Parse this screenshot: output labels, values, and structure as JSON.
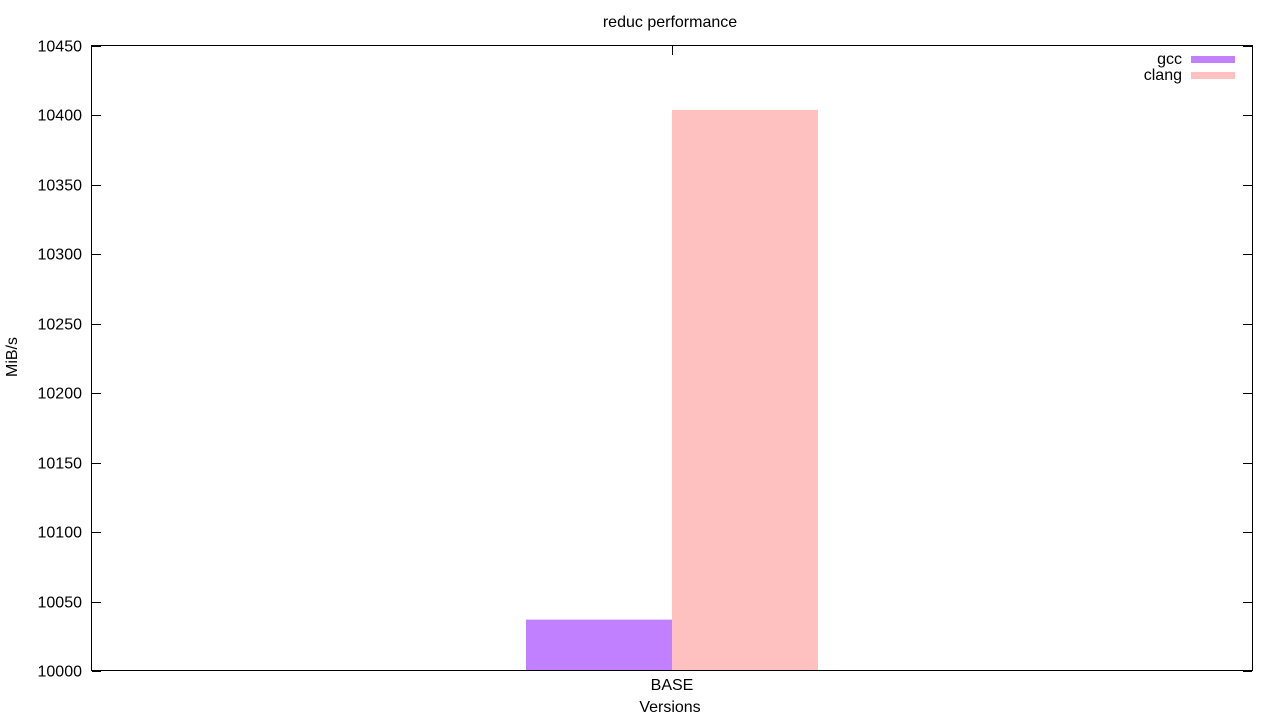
{
  "chart_data": {
    "type": "bar",
    "title": "reduc performance",
    "xlabel": "Versions",
    "ylabel": "MiB/s",
    "categories": [
      "BASE"
    ],
    "series": [
      {
        "name": "gcc",
        "values": [
          10037
        ],
        "color": "#c080ff"
      },
      {
        "name": "clang",
        "values": [
          10404
        ],
        "color": "#ffc0c0"
      }
    ],
    "ylim": [
      10000,
      10450
    ],
    "yticks": [
      "10000",
      "10050",
      "10100",
      "10150",
      "10200",
      "10250",
      "10300",
      "10350",
      "10400",
      "10450"
    ],
    "grid": false,
    "legend_position": "top-right"
  }
}
